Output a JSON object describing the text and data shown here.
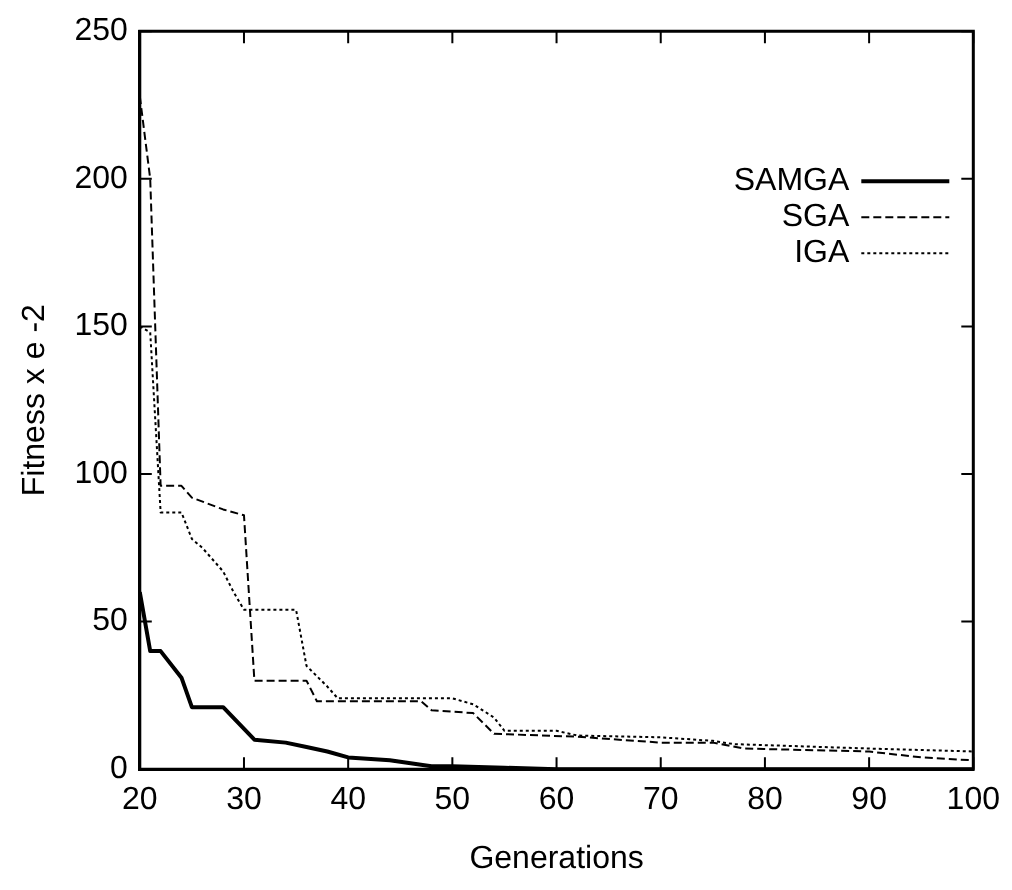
{
  "chart_data": {
    "type": "line",
    "xlabel": "Generations",
    "ylabel": "Fitness x e -2",
    "xlim": [
      20,
      100
    ],
    "ylim": [
      0,
      250
    ],
    "xticks": [
      20,
      30,
      40,
      50,
      60,
      70,
      80,
      90,
      100
    ],
    "yticks": [
      0,
      50,
      100,
      150,
      200,
      250
    ],
    "grid": false,
    "legend": "top right",
    "marker": "none",
    "series": [
      {
        "name": "SAMGA",
        "color": "#000000",
        "line_style": "solid",
        "x": [
          20,
          21,
          22,
          24,
          25,
          28,
          31,
          34,
          36,
          38,
          40,
          44,
          48,
          50,
          55,
          60,
          70,
          80,
          90,
          100
        ],
        "values": [
          60,
          40,
          40,
          31,
          21,
          21,
          10,
          9,
          7.5,
          6,
          4,
          3,
          1,
          1,
          0.5,
          0,
          0,
          0,
          0,
          0
        ]
      },
      {
        "name": "SGA",
        "color": "#000000",
        "line_style": "dashed",
        "x": [
          20,
          21,
          22,
          24,
          25,
          28,
          30,
          31,
          36,
          37,
          47,
          48,
          52,
          54,
          62,
          70,
          75,
          78,
          90,
          95,
          100
        ],
        "values": [
          228,
          200,
          96,
          96,
          92,
          88,
          86,
          30,
          30,
          23,
          23,
          20,
          19,
          12,
          11,
          9,
          9,
          7,
          6,
          4,
          3
        ]
      },
      {
        "name": "IGA",
        "color": "#000000",
        "line_style": "dotted",
        "x": [
          20,
          21,
          22,
          24,
          25,
          26,
          28,
          29,
          30,
          35,
          36,
          38,
          39,
          50,
          52,
          54,
          55,
          60,
          62,
          70,
          75,
          77,
          90,
          100
        ],
        "values": [
          150,
          148,
          87,
          87,
          78,
          75,
          67,
          60,
          54,
          54,
          35,
          28,
          24,
          24,
          22,
          17.5,
          13,
          13,
          11.4,
          10.8,
          9.6,
          8.5,
          7,
          6
        ]
      }
    ]
  }
}
